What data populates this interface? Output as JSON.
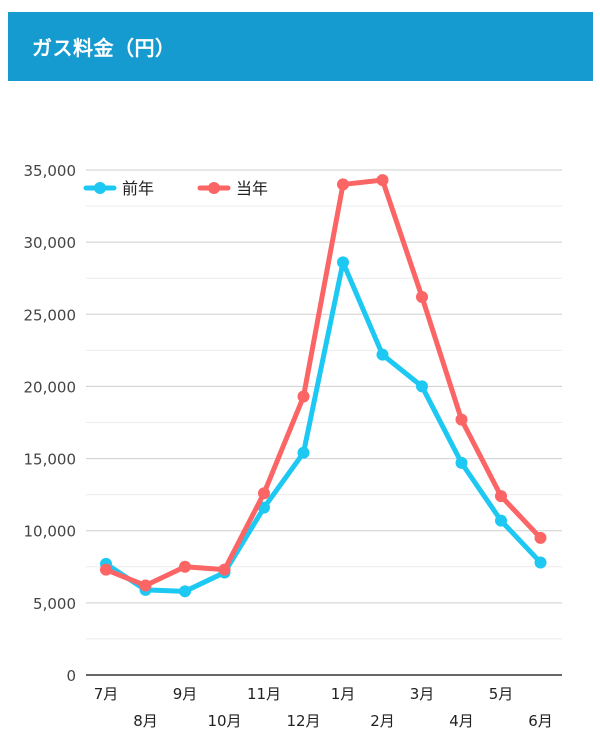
{
  "header": {
    "title": "ガス料金（円）"
  },
  "colors": {
    "header_bg": "#169bd1",
    "previous_year": "#1dc8f2",
    "current_year": "#fb6565"
  },
  "chart_data": {
    "type": "line",
    "title": "ガス料金（円）",
    "categories": [
      "7月",
      "8月",
      "9月",
      "10月",
      "11月",
      "12月",
      "1月",
      "2月",
      "3月",
      "4月",
      "5月",
      "6月"
    ],
    "series": [
      {
        "name": "前年",
        "values": [
          7700,
          5900,
          5800,
          7100,
          11600,
          15400,
          28600,
          22200,
          20000,
          14700,
          10700,
          7800
        ]
      },
      {
        "name": "当年",
        "values": [
          7300,
          6200,
          7500,
          7300,
          12600,
          19300,
          34000,
          34300,
          26200,
          17700,
          12400,
          9500
        ]
      }
    ],
    "ylim": [
      0,
      35000
    ],
    "yticks": [
      "0",
      "5,000",
      "10,000",
      "15,000",
      "20,000",
      "25,000",
      "30,000",
      "35,000"
    ],
    "legend_position": "top-left",
    "grid": true
  }
}
